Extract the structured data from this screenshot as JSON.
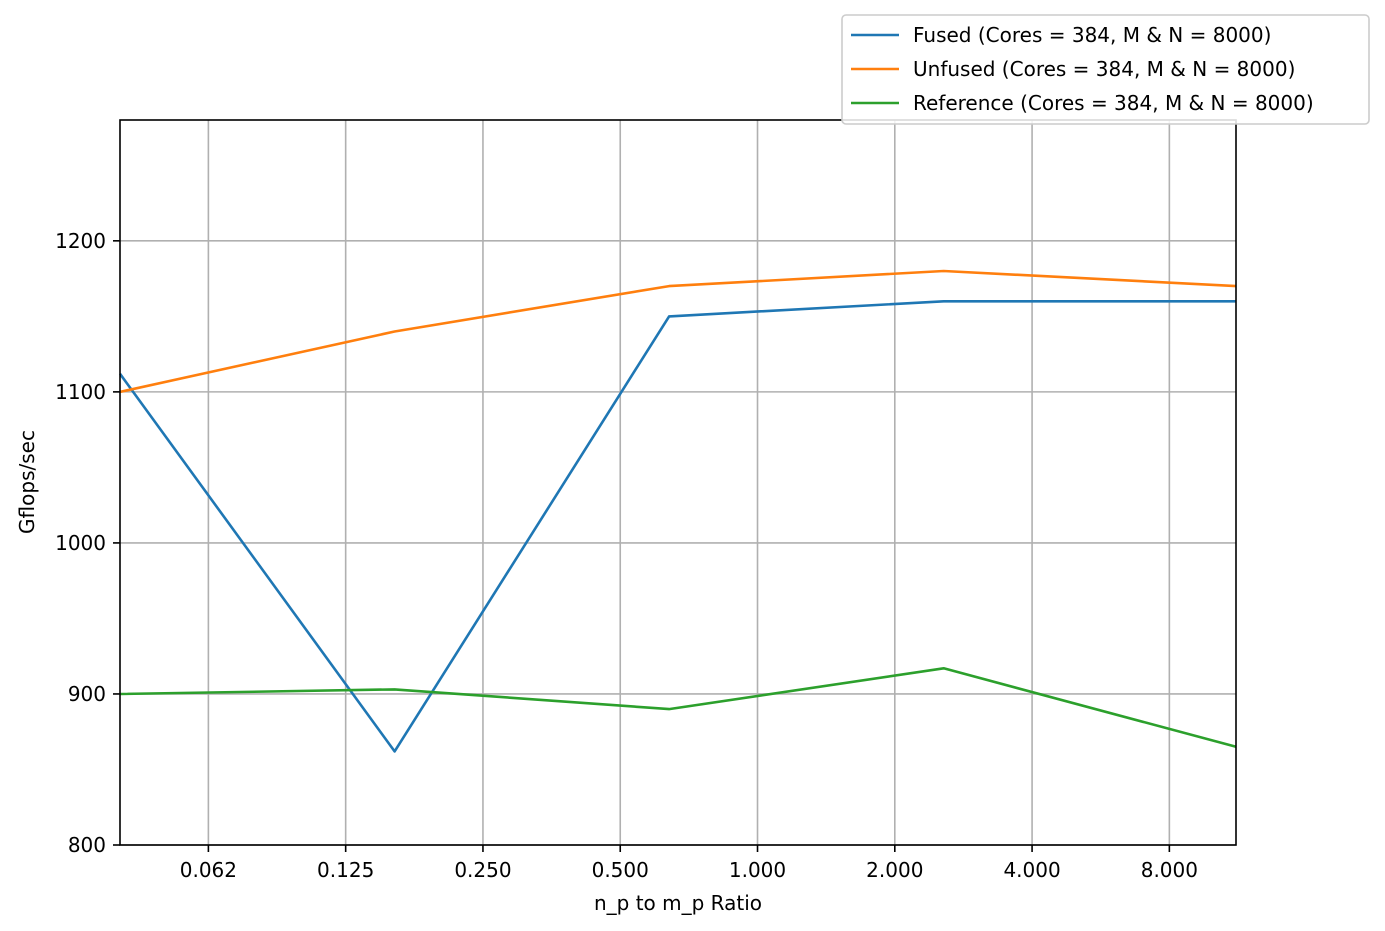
{
  "chart_data": {
    "type": "line",
    "title": "",
    "xlabel": "n_p to m_p Ratio",
    "ylabel": "Gflops/sec",
    "x_scale": "log2",
    "xlim": [
      0.04,
      11.2
    ],
    "ylim": [
      800,
      1280
    ],
    "x_ticks": [
      0.0625,
      0.125,
      0.25,
      0.5,
      1,
      2,
      4,
      8
    ],
    "x_tick_labels": [
      "0.062",
      "0.125",
      "0.250",
      "0.500",
      "1.000",
      "2.000",
      "4.000",
      "8.000"
    ],
    "y_ticks": [
      800,
      900,
      1000,
      1100,
      1200
    ],
    "y_tick_labels": [
      "800",
      "900",
      "1000",
      "1100",
      "1200"
    ],
    "grid": true,
    "legend_position": "top-right",
    "x": [
      0.04,
      0.16,
      0.64,
      2.56,
      11.2
    ],
    "series": [
      {
        "name": "Fused (Cores = 384, M & N = 8000)",
        "color": "#1f77b4",
        "values": [
          1112,
          862,
          1150,
          1160,
          1160
        ]
      },
      {
        "name": "Unfused (Cores = 384, M & N = 8000)",
        "color": "#ff7f0e",
        "values": [
          1100,
          1140,
          1170,
          1180,
          1170
        ]
      },
      {
        "name": "Reference (Cores = 384, M & N = 8000)",
        "color": "#2ca02c",
        "values": [
          900,
          903,
          890,
          917,
          865
        ]
      }
    ]
  }
}
